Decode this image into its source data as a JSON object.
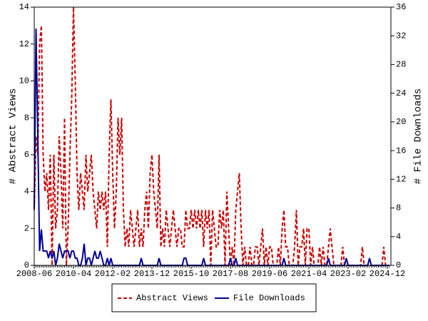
{
  "chart_data": {
    "type": "line",
    "x": [
      "2008-06",
      null,
      null,
      null,
      null,
      null,
      null,
      null,
      null,
      null,
      null,
      null,
      null,
      null,
      null,
      null,
      null,
      null,
      null,
      null,
      null,
      null,
      "2010-04",
      null,
      null,
      null,
      null,
      null,
      null,
      null,
      null,
      null,
      null,
      null,
      null,
      null,
      null,
      null,
      null,
      null,
      null,
      null,
      null,
      null,
      "2012-02",
      null,
      null,
      null,
      null,
      null,
      null,
      null,
      null,
      null,
      null,
      null,
      null,
      null,
      null,
      null,
      null,
      null,
      null,
      null,
      null,
      null,
      "2013-12",
      null,
      null,
      null,
      null,
      null,
      null,
      null,
      null,
      null,
      null,
      null,
      null,
      null,
      null,
      null,
      null,
      null,
      null,
      null,
      null,
      null,
      "2015-10",
      null,
      null,
      null,
      null,
      null,
      null,
      null,
      null,
      null,
      null,
      null,
      null,
      null,
      null,
      null,
      null,
      null,
      null,
      null,
      null,
      null,
      "2017-08",
      null,
      null,
      null,
      null,
      null,
      null,
      null,
      null,
      null,
      null,
      null,
      null,
      null,
      null,
      null,
      null,
      null,
      null,
      null,
      null,
      null,
      "2019-06",
      null,
      null,
      null,
      null,
      null,
      null,
      null,
      null,
      null,
      null,
      null,
      null,
      null,
      null,
      null,
      null,
      null,
      null,
      null,
      null,
      null,
      "2021-04",
      null,
      null,
      null,
      null,
      null,
      null,
      null,
      null,
      null,
      null,
      null,
      null,
      null,
      null,
      null,
      null,
      null,
      null,
      null,
      null,
      null,
      "2023-02",
      null,
      null,
      null,
      null,
      null,
      null,
      null,
      null,
      null,
      null,
      null,
      null,
      null,
      null,
      null,
      null,
      null,
      null,
      null,
      null,
      null,
      "2024-12",
      null
    ],
    "ylabel": "# Abstract Views",
    "y2label": "# File Downloads",
    "ylim": [
      0,
      14
    ],
    "yticks": [
      0,
      2,
      4,
      6,
      8,
      10,
      12,
      14
    ],
    "y2lim": [
      0,
      36
    ],
    "y2ticks": [
      0,
      4,
      8,
      12,
      16,
      20,
      24,
      28,
      32,
      36
    ],
    "legend": "bottom",
    "series": [
      {
        "name": "Abstract Views",
        "color": "#cc0000",
        "dashed": true,
        "values": [
          3,
          7,
          6,
          12,
          13,
          6,
          4,
          5,
          3,
          6,
          0,
          6,
          2,
          3,
          7,
          5,
          2,
          8,
          0,
          2,
          6,
          9,
          14,
          10,
          5,
          3,
          5,
          4,
          3,
          6,
          4,
          5,
          6,
          4,
          3,
          2,
          4,
          3,
          4,
          3,
          4,
          1,
          6,
          9,
          5,
          2,
          4,
          8,
          6,
          8,
          3,
          1,
          2,
          1,
          3,
          2,
          1,
          2,
          3,
          1,
          2,
          1,
          3,
          4,
          2,
          5,
          6,
          4,
          3,
          2,
          6,
          1,
          2,
          1,
          3,
          2,
          1,
          2,
          3,
          2,
          1,
          2,
          2,
          1,
          1,
          3,
          2,
          2,
          3,
          2,
          3,
          2,
          3,
          2,
          3,
          1,
          3,
          2,
          3,
          0,
          3,
          2,
          1,
          1,
          3,
          2,
          3,
          0,
          4,
          2,
          0,
          1,
          0,
          3,
          4,
          5,
          2,
          0,
          1,
          0,
          0,
          1,
          0,
          0,
          1,
          1,
          0,
          1,
          2,
          0,
          1,
          0,
          1,
          1,
          0,
          0,
          0,
          1,
          0,
          2,
          3,
          1,
          1,
          0,
          0,
          0,
          1,
          3,
          0,
          1,
          1,
          2,
          0,
          2,
          2,
          0,
          1,
          0,
          0,
          0,
          1,
          0,
          1,
          0,
          0,
          1,
          2,
          1,
          0,
          0,
          0,
          0,
          0,
          1,
          0,
          0,
          0,
          0,
          0,
          0,
          0,
          0,
          0,
          0,
          1,
          0,
          0,
          0,
          0,
          0,
          0,
          0,
          0,
          0,
          0,
          0,
          1,
          0,
          0,
          0
        ]
      },
      {
        "name": "File Downloads",
        "color": "#000099",
        "axis": "y2",
        "values": [
          8,
          33,
          18,
          2,
          5,
          2,
          2,
          2,
          1,
          2,
          1,
          2,
          0,
          1,
          3,
          2,
          1,
          2,
          2,
          2,
          1,
          2,
          2,
          1,
          1,
          0,
          0,
          1,
          3,
          0,
          1,
          1,
          0,
          1,
          2,
          1,
          1,
          2,
          1,
          0,
          0,
          1,
          0,
          1,
          0,
          0,
          0,
          0,
          0,
          0,
          0,
          0,
          0,
          0,
          0,
          0,
          0,
          0,
          0,
          0,
          1,
          0,
          0,
          0,
          0,
          0,
          0,
          0,
          0,
          0,
          1,
          0,
          0,
          0,
          0,
          0,
          0,
          0,
          0,
          0,
          0,
          0,
          0,
          0,
          1,
          1,
          0,
          0,
          0,
          0,
          0,
          0,
          0,
          0,
          0,
          1,
          0,
          0,
          0,
          0,
          0,
          0,
          0,
          0,
          0,
          0,
          0,
          0,
          0,
          0,
          1,
          0,
          0,
          1,
          0,
          0,
          0,
          0,
          0,
          0,
          0,
          0,
          0,
          0,
          0,
          0,
          0,
          0,
          0,
          0,
          0,
          0,
          0,
          0,
          0,
          0,
          0,
          0,
          0,
          0,
          1,
          0,
          0,
          0,
          0,
          0,
          0,
          0,
          0,
          0,
          0,
          0,
          0,
          0,
          0,
          0,
          0,
          0,
          0,
          0,
          0,
          0,
          0,
          0,
          0,
          1,
          0,
          0,
          0,
          0,
          0,
          0,
          0,
          0,
          0,
          1,
          0,
          0,
          0,
          0,
          0,
          0,
          0,
          0,
          0,
          0,
          0,
          0,
          1,
          0,
          0,
          0,
          0,
          0,
          0,
          0,
          0,
          0,
          0,
          0
        ]
      }
    ]
  }
}
